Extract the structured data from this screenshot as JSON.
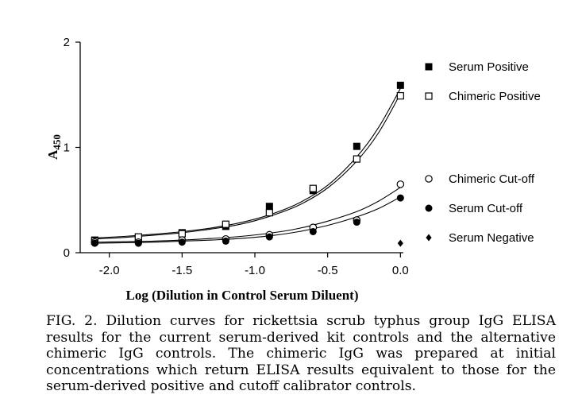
{
  "chart_data": {
    "type": "scatter",
    "title": "",
    "xlabel": "Log (Dilution in Control Serum Diluent)",
    "ylabel": "A",
    "ylabel_subscript": "450",
    "xlim": [
      -2.2,
      0.02
    ],
    "ylim": [
      0,
      2
    ],
    "x_ticks": [
      -2.0,
      -1.5,
      -1.0,
      -0.5,
      0.0
    ],
    "x_tick_labels": [
      "-2.0",
      "-1.5",
      "-1.0",
      "-0.5",
      "0.0"
    ],
    "y_ticks": [
      0,
      1,
      2
    ],
    "y_tick_labels": [
      "0",
      "1",
      "2"
    ],
    "grid": false,
    "legend_position": "right",
    "series": [
      {
        "name": "Serum Positive",
        "marker": "filled-square",
        "x": [
          -2.1,
          -1.8,
          -1.5,
          -1.2,
          -0.9,
          -0.6,
          -0.3,
          0.0
        ],
        "y": [
          0.12,
          0.14,
          0.19,
          0.25,
          0.44,
          0.59,
          1.01,
          1.59
        ],
        "curve": {
          "x": [
            -2.1,
            -1.9,
            -1.7,
            -1.5,
            -1.3,
            -1.1,
            -0.9,
            -0.7,
            -0.5,
            -0.3,
            -0.15,
            0.0
          ],
          "y": [
            0.14,
            0.155,
            0.175,
            0.2,
            0.235,
            0.285,
            0.36,
            0.47,
            0.64,
            0.91,
            1.19,
            1.56
          ]
        }
      },
      {
        "name": "Chimeric Positive",
        "marker": "open-square",
        "x": [
          -2.1,
          -1.8,
          -1.5,
          -1.2,
          -0.9,
          -0.6,
          -0.3,
          0.0
        ],
        "y": [
          0.11,
          0.15,
          0.18,
          0.27,
          0.38,
          0.61,
          0.89,
          1.49
        ],
        "curve": {
          "x": [
            -2.1,
            -1.9,
            -1.7,
            -1.5,
            -1.3,
            -1.1,
            -0.9,
            -0.7,
            -0.5,
            -0.3,
            -0.15,
            0.0
          ],
          "y": [
            0.13,
            0.145,
            0.165,
            0.19,
            0.225,
            0.27,
            0.345,
            0.45,
            0.615,
            0.87,
            1.14,
            1.51
          ]
        }
      },
      {
        "name": "Chimeric Cut-off",
        "marker": "open-circle",
        "x": [
          -2.1,
          -1.8,
          -1.5,
          -1.2,
          -0.9,
          -0.6,
          -0.3,
          0.0
        ],
        "y": [
          0.1,
          0.1,
          0.12,
          0.13,
          0.17,
          0.24,
          0.31,
          0.65
        ],
        "curve": {
          "x": [
            -2.1,
            -1.9,
            -1.7,
            -1.5,
            -1.3,
            -1.1,
            -0.9,
            -0.7,
            -0.5,
            -0.3,
            -0.15,
            0.0
          ],
          "y": [
            0.1,
            0.105,
            0.11,
            0.12,
            0.135,
            0.155,
            0.185,
            0.23,
            0.3,
            0.39,
            0.49,
            0.62
          ]
        }
      },
      {
        "name": "Serum Cut-off",
        "marker": "filled-circle",
        "x": [
          -2.1,
          -1.8,
          -1.5,
          -1.2,
          -0.9,
          -0.6,
          -0.3,
          0.0
        ],
        "y": [
          0.09,
          0.09,
          0.1,
          0.11,
          0.15,
          0.2,
          0.29,
          0.52
        ],
        "curve": {
          "x": [
            -2.1,
            -1.9,
            -1.7,
            -1.5,
            -1.3,
            -1.1,
            -0.9,
            -0.7,
            -0.5,
            -0.3,
            -0.15,
            0.0
          ],
          "y": [
            0.09,
            0.095,
            0.1,
            0.11,
            0.12,
            0.135,
            0.16,
            0.2,
            0.26,
            0.34,
            0.42,
            0.53
          ]
        }
      },
      {
        "name": "Serum Negative",
        "marker": "filled-diamond",
        "x": [
          0.0
        ],
        "y": [
          0.09
        ]
      }
    ]
  },
  "caption": "FIG. 2. Dilution curves for rickettsia scrub typhus group IgG ELISA results for the current serum-derived kit controls and the alternative chimeric IgG controls. The chimeric IgG was prepared at initial concentrations which return ELISA results equivalent to those for the serum-derived positive and cutoff calibrator controls."
}
